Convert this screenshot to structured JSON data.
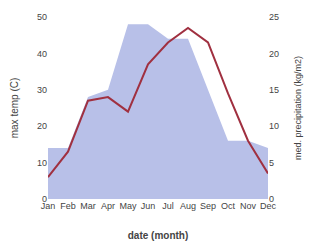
{
  "chart_data": {
    "type": "line",
    "xlabel": "date (month)",
    "ylabel": "max temp (C)",
    "y2label": "med. precipitation (kg/m2)",
    "categories": [
      "Jan",
      "Feb",
      "Mar",
      "Apr",
      "May",
      "Jun",
      "Jul",
      "Aug",
      "Sep",
      "Oct",
      "Nov",
      "Dec"
    ],
    "series": [
      {
        "type": "area",
        "axis": "y2",
        "color": "#b8c0e8",
        "values": [
          7,
          7,
          14,
          15,
          24,
          24,
          22,
          22,
          15,
          8,
          8,
          7
        ]
      },
      {
        "type": "line",
        "color": "#a03040",
        "values": [
          6,
          13,
          27,
          28,
          24,
          37,
          43,
          47,
          43,
          29,
          16,
          7
        ]
      }
    ],
    "ylim": [
      0,
      50
    ],
    "yticks": [
      0,
      10,
      20,
      30,
      40,
      50
    ],
    "y2lim": [
      0,
      25
    ],
    "y2ticks": [
      0,
      5,
      10,
      15,
      20,
      25
    ],
    "grid": false
  }
}
